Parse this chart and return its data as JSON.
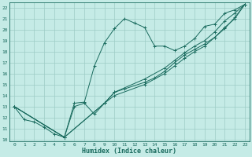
{
  "title": "",
  "xlabel": "Humidex (Indice chaleur)",
  "bg_color": "#c5ebe6",
  "grid_color": "#9dccc5",
  "line_color": "#1a6b5e",
  "xlim": [
    -0.5,
    23.5
  ],
  "ylim": [
    9.8,
    22.5
  ],
  "xticks": [
    0,
    1,
    2,
    3,
    4,
    5,
    6,
    7,
    8,
    9,
    10,
    11,
    12,
    13,
    14,
    15,
    16,
    17,
    18,
    19,
    20,
    21,
    22,
    23
  ],
  "yticks": [
    10,
    11,
    12,
    13,
    14,
    15,
    16,
    17,
    18,
    19,
    20,
    21,
    22
  ],
  "line1_x": [
    0,
    1,
    2,
    3,
    4,
    5,
    6,
    7,
    8,
    9,
    10,
    11,
    12,
    13,
    14,
    15,
    16,
    17,
    18,
    19,
    20,
    21,
    22,
    23
  ],
  "line1_y": [
    13.0,
    11.8,
    11.6,
    11.1,
    10.5,
    10.2,
    13.3,
    13.4,
    16.7,
    18.8,
    20.1,
    21.0,
    20.6,
    20.2,
    18.5,
    18.5,
    18.1,
    18.5,
    19.2,
    20.3,
    20.5,
    21.5,
    21.8,
    22.3
  ],
  "line2_x": [
    0,
    5,
    6,
    7,
    8,
    9,
    10,
    11,
    13,
    14,
    15,
    16,
    17,
    18,
    19,
    20,
    21,
    22,
    23
  ],
  "line2_y": [
    13.0,
    10.2,
    13.0,
    13.3,
    12.3,
    13.3,
    14.3,
    14.6,
    15.2,
    15.6,
    16.2,
    17.0,
    17.7,
    18.2,
    18.7,
    19.3,
    20.2,
    21.0,
    22.3
  ],
  "line3_x": [
    0,
    5,
    9,
    10,
    13,
    15,
    16,
    17,
    18,
    19,
    20,
    21,
    22,
    23
  ],
  "line3_y": [
    13.0,
    10.2,
    13.3,
    14.0,
    15.0,
    16.0,
    16.7,
    17.4,
    18.0,
    18.5,
    19.3,
    20.1,
    21.1,
    22.3
  ],
  "line4_x": [
    0,
    5,
    9,
    10,
    13,
    15,
    16,
    17,
    18,
    19,
    20,
    21,
    22,
    23
  ],
  "line4_y": [
    13.0,
    10.2,
    13.3,
    14.3,
    15.5,
    16.5,
    17.2,
    17.9,
    18.5,
    19.0,
    19.8,
    20.8,
    21.5,
    22.3
  ]
}
